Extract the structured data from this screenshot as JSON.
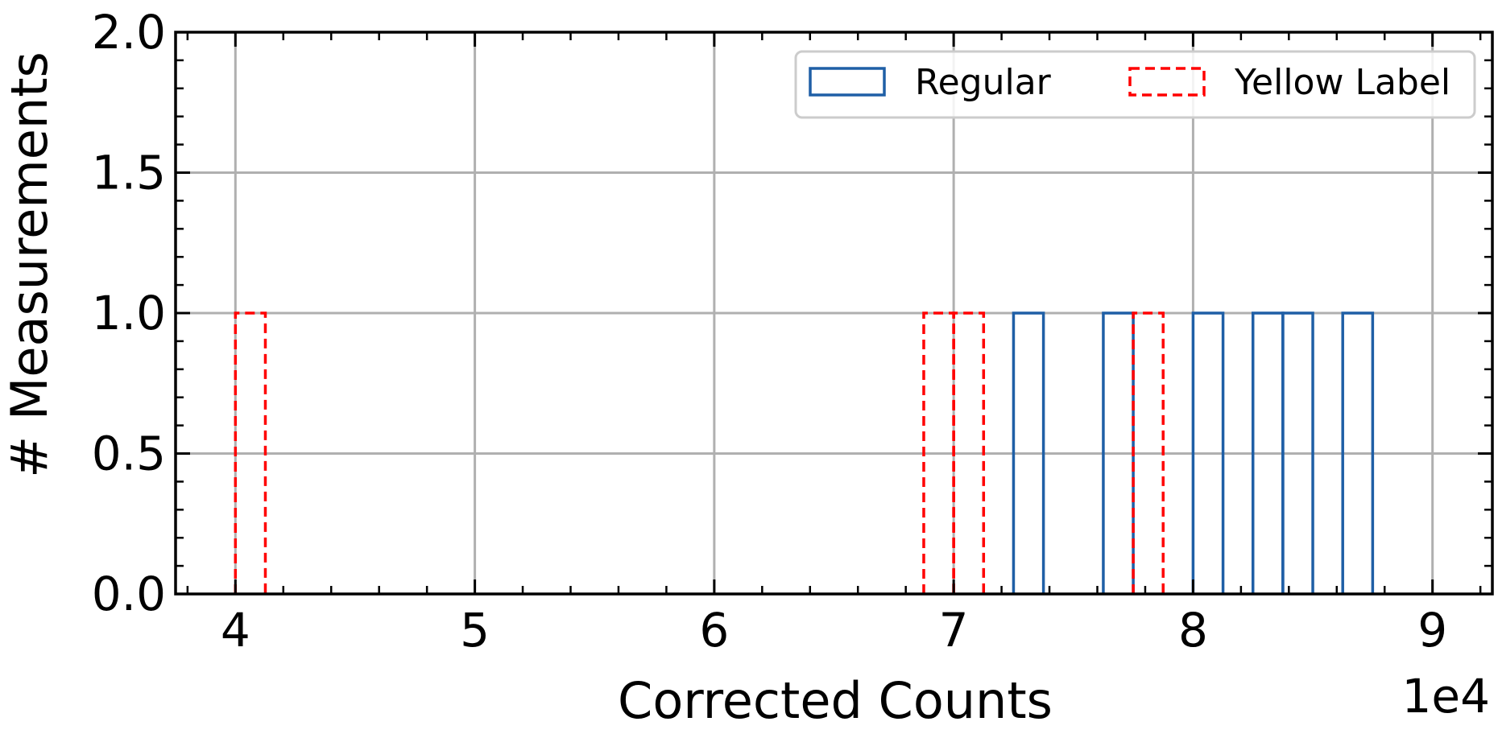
{
  "chart_data": {
    "type": "bar",
    "histogram": true,
    "xlabel": "Corrected Counts",
    "ylabel": "# Measurements",
    "x_offset_text": "1e4",
    "xlim": [
      37500,
      92500
    ],
    "ylim": [
      0,
      2.0
    ],
    "x_ticks": [
      40000,
      50000,
      60000,
      70000,
      80000,
      90000
    ],
    "x_tick_labels": [
      "4",
      "5",
      "6",
      "7",
      "8",
      "9"
    ],
    "y_ticks": [
      0,
      0.5,
      1.0,
      1.5,
      2.0
    ],
    "y_tick_labels": [
      "0.0",
      "0.5",
      "1.0",
      "1.5",
      "2.0"
    ],
    "grid": true,
    "legend_position": "upper-right",
    "series": [
      {
        "name": "Regular",
        "color": "#1f5fa6",
        "line_style": "solid",
        "bins": [
          {
            "x0": 72500,
            "x1": 73750,
            "count": 1
          },
          {
            "x0": 76250,
            "x1": 77500,
            "count": 1
          },
          {
            "x0": 80000,
            "x1": 81250,
            "count": 1
          },
          {
            "x0": 82500,
            "x1": 83750,
            "count": 1
          },
          {
            "x0": 83750,
            "x1": 85000,
            "count": 1
          },
          {
            "x0": 86250,
            "x1": 87500,
            "count": 1
          }
        ]
      },
      {
        "name": "Yellow Label",
        "color": "#ff0000",
        "line_style": "dashed",
        "bins": [
          {
            "x0": 40000,
            "x1": 41250,
            "count": 1
          },
          {
            "x0": 68750,
            "x1": 70000,
            "count": 1
          },
          {
            "x0": 70000,
            "x1": 71250,
            "count": 1
          },
          {
            "x0": 77500,
            "x1": 78750,
            "count": 1
          }
        ]
      }
    ]
  }
}
